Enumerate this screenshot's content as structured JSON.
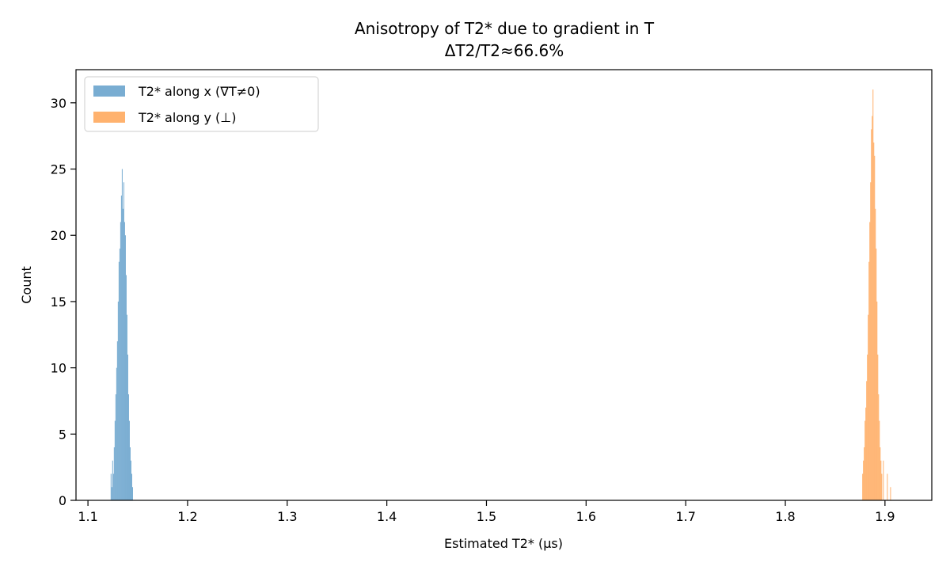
{
  "chart_data": {
    "type": "bar",
    "title": "Anisotropy of T2* due to gradient in T",
    "subtitle": "ΔT2/T2≈66.6%",
    "xlabel": "Estimated T2* (µs)",
    "ylabel": "Count",
    "xlim": [
      1.088,
      1.947
    ],
    "ylim": [
      0,
      32.5
    ],
    "x_ticks": [
      1.1,
      1.2,
      1.3,
      1.4,
      1.5,
      1.6,
      1.7,
      1.8,
      1.9
    ],
    "x_tick_labels": [
      "1.1",
      "1.2",
      "1.3",
      "1.4",
      "1.5",
      "1.6",
      "1.7",
      "1.8",
      "1.9"
    ],
    "y_ticks": [
      0,
      5,
      10,
      15,
      20,
      25,
      30
    ],
    "y_tick_labels": [
      "0",
      "5",
      "10",
      "15",
      "20",
      "25",
      "30"
    ],
    "grid": false,
    "legend_position": "top-left",
    "series": [
      {
        "name": "T2* along x (∇T≠0)",
        "color": "#1f77b4",
        "opacity": 0.6,
        "bin_width": 0.0008,
        "bins": [
          [
            1.1228,
            2
          ],
          [
            1.1236,
            1
          ],
          [
            1.1244,
            3
          ],
          [
            1.1252,
            2
          ],
          [
            1.126,
            4
          ],
          [
            1.1268,
            6
          ],
          [
            1.1276,
            8
          ],
          [
            1.1284,
            10
          ],
          [
            1.1292,
            12
          ],
          [
            1.13,
            15
          ],
          [
            1.1308,
            18
          ],
          [
            1.1316,
            19
          ],
          [
            1.1324,
            21
          ],
          [
            1.1332,
            23
          ],
          [
            1.134,
            25
          ],
          [
            1.1348,
            22
          ],
          [
            1.1356,
            24
          ],
          [
            1.1364,
            21
          ],
          [
            1.1372,
            20
          ],
          [
            1.138,
            17
          ],
          [
            1.1388,
            14
          ],
          [
            1.1396,
            11
          ],
          [
            1.1404,
            8
          ],
          [
            1.1412,
            6
          ],
          [
            1.142,
            4
          ],
          [
            1.1428,
            3
          ],
          [
            1.1436,
            2
          ],
          [
            1.1444,
            1
          ]
        ]
      },
      {
        "name": "T2* along y (⊥)",
        "color": "#ff7f0e",
        "opacity": 0.6,
        "bin_width": 0.0008,
        "bins": [
          [
            1.8772,
            2
          ],
          [
            1.878,
            3
          ],
          [
            1.8788,
            4
          ],
          [
            1.8796,
            6
          ],
          [
            1.8804,
            7
          ],
          [
            1.8812,
            9
          ],
          [
            1.882,
            11
          ],
          [
            1.8828,
            14
          ],
          [
            1.8836,
            18
          ],
          [
            1.8844,
            21
          ],
          [
            1.8852,
            24
          ],
          [
            1.886,
            28
          ],
          [
            1.8868,
            29
          ],
          [
            1.8876,
            31
          ],
          [
            1.8884,
            27
          ],
          [
            1.8892,
            26
          ],
          [
            1.89,
            22
          ],
          [
            1.8908,
            19
          ],
          [
            1.8916,
            15
          ],
          [
            1.8924,
            11
          ],
          [
            1.8932,
            8
          ],
          [
            1.894,
            6
          ],
          [
            1.8948,
            4
          ],
          [
            1.8956,
            3
          ],
          [
            1.8964,
            2
          ],
          [
            1.898,
            3
          ],
          [
            1.902,
            2
          ],
          [
            1.9052,
            1
          ]
        ]
      }
    ]
  }
}
